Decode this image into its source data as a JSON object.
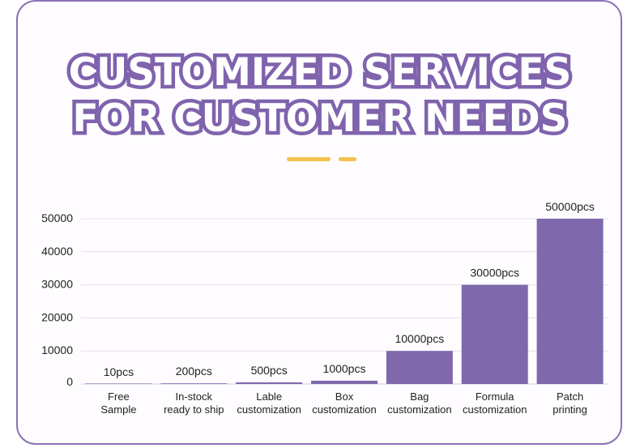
{
  "header": {
    "title_line1": "CUSTOMIZED SERVICES",
    "title_line2": "FOR CUSTOMER NEEDS"
  },
  "colors": {
    "accent": "#7f63ad",
    "bar": "#7f68ab",
    "deco": "#f2c14e",
    "border": "#8b72b4"
  },
  "chart_data": {
    "type": "bar",
    "title": "",
    "xlabel": "",
    "ylabel": "",
    "ylim": [
      0,
      50000
    ],
    "yticks": [
      0,
      10000,
      20000,
      30000,
      40000,
      50000
    ],
    "grid": true,
    "categories": [
      [
        "Free",
        "Sample"
      ],
      [
        "In-stock",
        "ready to ship"
      ],
      [
        "Lable",
        "customization"
      ],
      [
        "Box",
        "customization"
      ],
      [
        "Bag",
        "customization"
      ],
      [
        "Formula",
        "customization"
      ],
      [
        "Patch",
        "printing"
      ]
    ],
    "values": [
      10,
      200,
      500,
      1000,
      10000,
      30000,
      50000
    ],
    "data_labels": [
      "10pcs",
      "200pcs",
      "500pcs",
      "1000pcs",
      "10000pcs",
      "30000pcs",
      "50000pcs"
    ]
  }
}
